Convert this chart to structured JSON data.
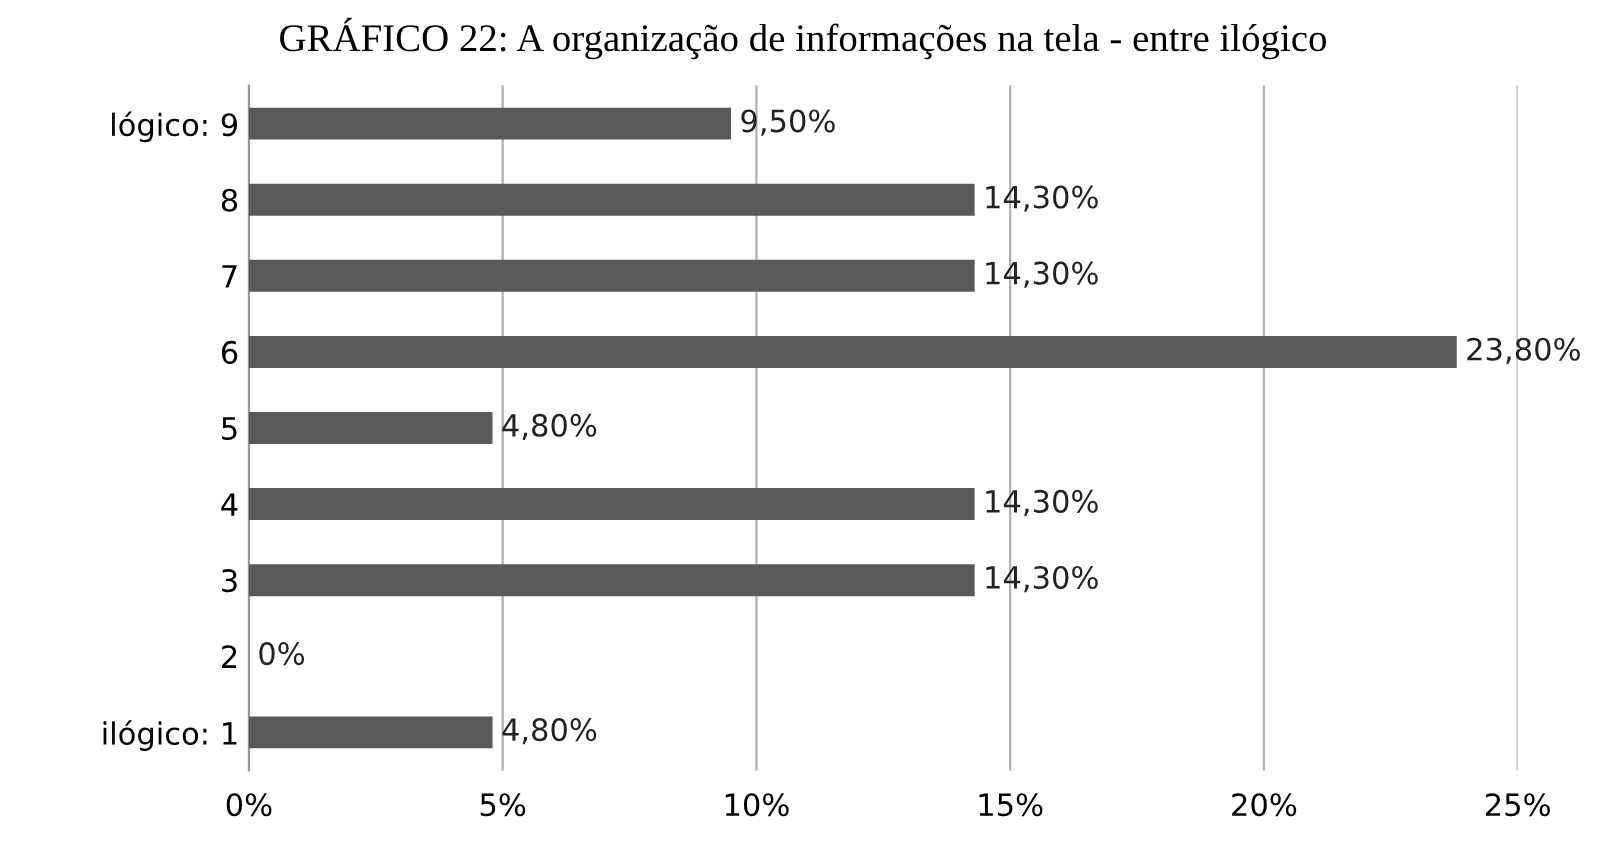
{
  "chart_data": {
    "type": "bar",
    "orientation": "horizontal",
    "title": "GRÁFICO 22: A organização de informações na tela - entre ilógico",
    "categories": [
      "lógico: 9",
      "8",
      "7",
      "6",
      "5",
      "4",
      "3",
      "2",
      "ilógico: 1"
    ],
    "values": [
      9.5,
      14.3,
      14.3,
      23.8,
      4.8,
      14.3,
      14.3,
      0,
      4.8
    ],
    "value_labels": [
      "9,50%",
      "14,30%",
      "14,30%",
      "23,80%",
      "4,80%",
      "14,30%",
      "14,30%",
      "0%",
      "4,80%"
    ],
    "color": "#595959",
    "xlim": [
      0,
      25
    ],
    "xticks": [
      {
        "value": 0,
        "label": "0%"
      },
      {
        "value": 5,
        "label": "5%"
      },
      {
        "value": 10,
        "label": "10%"
      },
      {
        "value": 15,
        "label": "15%"
      },
      {
        "value": 20,
        "label": "20%"
      },
      {
        "value": 25,
        "label": "25%"
      }
    ],
    "grid": "x"
  }
}
